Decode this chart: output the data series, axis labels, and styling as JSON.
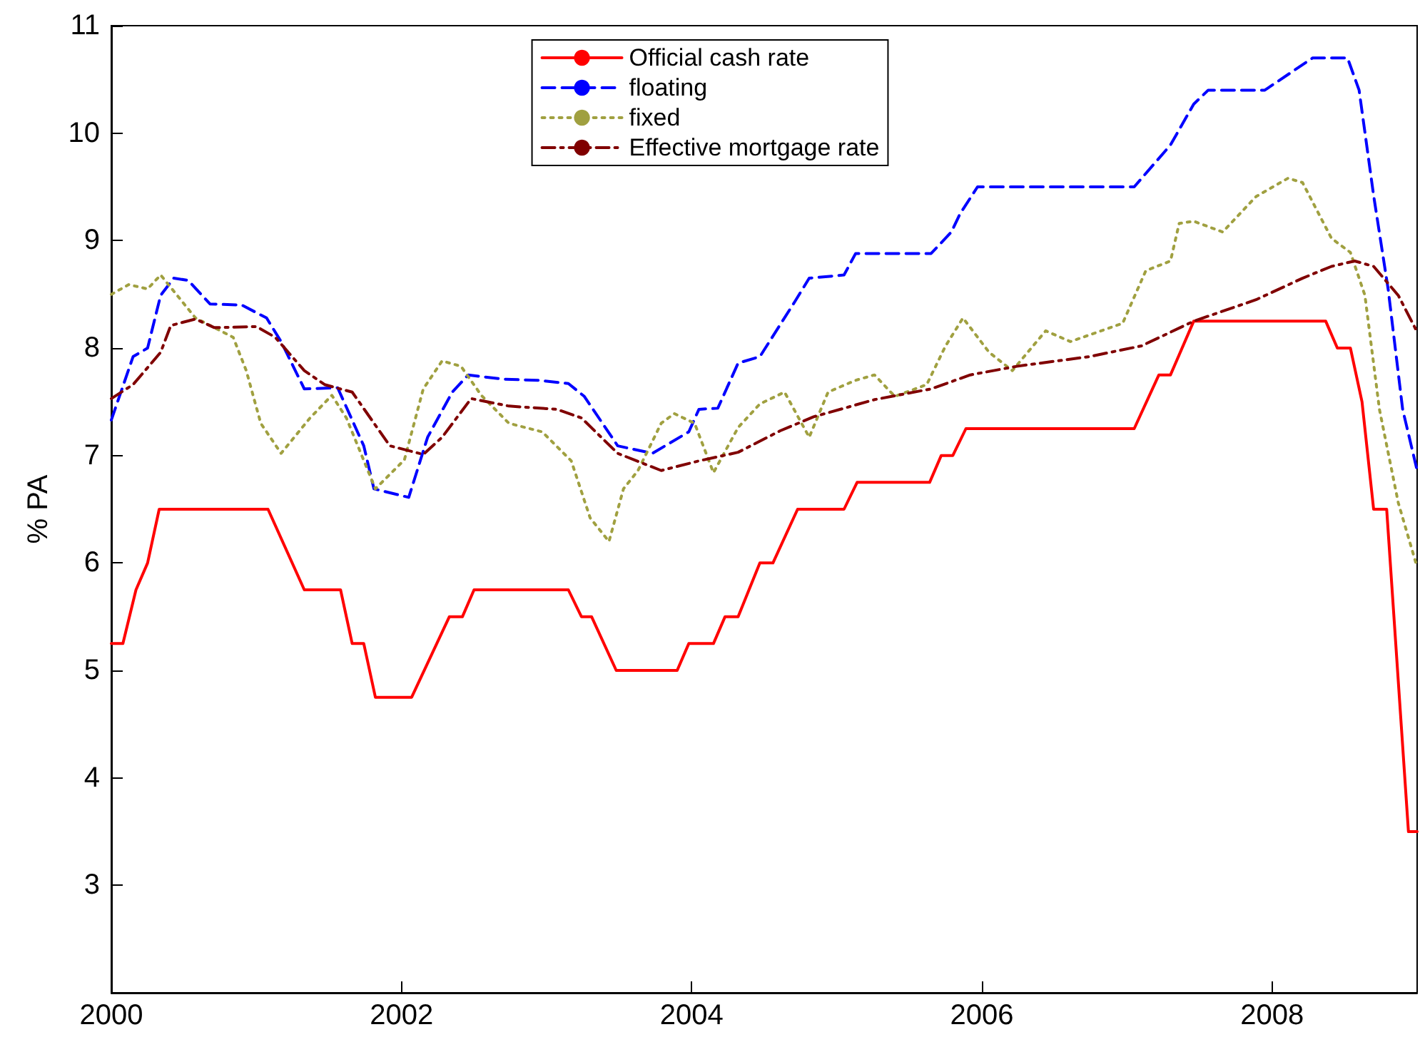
{
  "chart_data": {
    "type": "line",
    "ylabel": "% PA",
    "xlim": [
      2000,
      2009
    ],
    "xticks": [
      2000,
      2002,
      2004,
      2006,
      2008
    ],
    "ylim": [
      2,
      11
    ],
    "yticks": [
      3,
      4,
      5,
      6,
      7,
      8,
      9,
      10,
      11
    ],
    "grid": false,
    "legend": "top",
    "marker": "none",
    "series": [
      {
        "name": "Official cash rate",
        "color": "#ff0000",
        "line_style": "solid",
        "x": [
          2000,
          2000.08,
          2000.17,
          2000.25,
          2000.33,
          2001.08,
          2001.33,
          2001.58,
          2001.66,
          2001.74,
          2001.82,
          2002.07,
          2002.33,
          2002.42,
          2002.5,
          2003.15,
          2003.24,
          2003.31,
          2003.48,
          2003.9,
          2003.98,
          2004.15,
          2004.23,
          2004.32,
          2004.47,
          2004.56,
          2004.73,
          2005.05,
          2005.14,
          2005.64,
          2005.72,
          2005.8,
          2005.89,
          2007.05,
          2007.22,
          2007.3,
          2007.46,
          2008.37,
          2008.45,
          2008.54,
          2008.62,
          2008.7,
          2008.79,
          2008.94,
          2009
        ],
        "values": [
          5.25,
          5.25,
          5.75,
          6,
          6.5,
          6.5,
          5.75,
          5.75,
          5.25,
          5.25,
          4.75,
          4.75,
          5.5,
          5.5,
          5.75,
          5.75,
          5.5,
          5.5,
          5,
          5,
          5.25,
          5.25,
          5.5,
          5.5,
          6,
          6,
          6.5,
          6.5,
          6.75,
          6.75,
          7,
          7,
          7.25,
          7.25,
          7.75,
          7.75,
          8.25,
          8.25,
          8,
          8,
          7.5,
          6.5,
          6.5,
          3.5,
          3.5
        ]
      },
      {
        "name": "floating",
        "color": "#0000ff",
        "line_style": "dashed",
        "x": [
          2000,
          2000.15,
          2000.25,
          2000.34,
          2000.43,
          2000.53,
          2000.68,
          2000.9,
          2001.07,
          2001.17,
          2001.33,
          2001.56,
          2001.74,
          2001.81,
          2002.05,
          2002.18,
          2002.35,
          2002.46,
          2002.7,
          2002.94,
          2003.15,
          2003.26,
          2003.49,
          2003.73,
          2003.98,
          2004.05,
          2004.18,
          2004.32,
          2004.47,
          2004.71,
          2004.81,
          2005.05,
          2005.13,
          2005.65,
          2005.79,
          2005.85,
          2005.97,
          2007.05,
          2007.3,
          2007.46,
          2007.56,
          2007.95,
          2008.28,
          2008.52,
          2008.6,
          2008.7,
          2008.8,
          2008.9,
          2009
        ],
        "values": [
          7.33,
          7.92,
          8,
          8.49,
          8.65,
          8.63,
          8.41,
          8.4,
          8.28,
          8.06,
          7.62,
          7.63,
          7.09,
          6.69,
          6.61,
          7.17,
          7.59,
          7.75,
          7.71,
          7.7,
          7.67,
          7.55,
          7.09,
          7.02,
          7.22,
          7.43,
          7.44,
          7.86,
          7.92,
          8.43,
          8.65,
          8.68,
          8.88,
          8.88,
          9.08,
          9.25,
          9.5,
          9.5,
          9.89,
          10.27,
          10.4,
          10.4,
          10.7,
          10.7,
          10.4,
          9.42,
          8.55,
          7.43,
          6.86
        ]
      },
      {
        "name": "fixed",
        "color": "#a0a040",
        "line_style": "dotted",
        "x": [
          2000,
          2000.12,
          2000.25,
          2000.34,
          2000.58,
          2000.84,
          2000.93,
          2001.03,
          2001.17,
          2001.37,
          2001.52,
          2001.62,
          2001.82,
          2002.02,
          2002.15,
          2002.28,
          2002.41,
          2002.55,
          2002.74,
          2002.97,
          2003.17,
          2003.3,
          2003.43,
          2003.53,
          2003.63,
          2003.79,
          2003.88,
          2004.02,
          2004.15,
          2004.32,
          2004.47,
          2004.64,
          2004.81,
          2004.94,
          2005.13,
          2005.26,
          2005.4,
          2005.62,
          2005.75,
          2005.87,
          2006.05,
          2006.21,
          2006.44,
          2006.61,
          2006.97,
          2007.13,
          2007.3,
          2007.36,
          2007.46,
          2007.66,
          2007.89,
          2008.11,
          2008.21,
          2008.41,
          2008.54,
          2008.64,
          2008.74,
          2008.87,
          2009
        ],
        "values": [
          8.5,
          8.59,
          8.55,
          8.68,
          8.28,
          8.1,
          7.79,
          7.3,
          7.02,
          7.35,
          7.56,
          7.35,
          6.69,
          6.96,
          7.62,
          7.88,
          7.83,
          7.56,
          7.3,
          7.22,
          6.95,
          6.42,
          6.2,
          6.69,
          6.86,
          7.3,
          7.39,
          7.3,
          6.84,
          7.26,
          7.48,
          7.59,
          7.17,
          7.59,
          7.7,
          7.75,
          7.55,
          7.66,
          8.02,
          8.28,
          7.96,
          7.79,
          8.16,
          8.06,
          8.23,
          8.72,
          8.81,
          9.16,
          9.18,
          9.08,
          9.41,
          9.58,
          9.54,
          9.02,
          8.89,
          8.49,
          7.43,
          6.56,
          5.96
        ]
      },
      {
        "name": "Effective mortgage rate",
        "color": "#800000",
        "line_style": "dashdot",
        "x": [
          2000,
          2000.15,
          2000.34,
          2000.41,
          2000.58,
          2000.71,
          2001,
          2001.13,
          2001.33,
          2001.47,
          2001.66,
          2001.92,
          2002.15,
          2002.28,
          2002.48,
          2002.74,
          2003.07,
          2003.24,
          2003.49,
          2003.79,
          2004.05,
          2004.32,
          2004.61,
          2004.84,
          2005.26,
          2005.65,
          2005.92,
          2006.24,
          2006.74,
          2007.1,
          2007.46,
          2007.89,
          2008.21,
          2008.41,
          2008.57,
          2008.7,
          2008.87,
          2009
        ],
        "values": [
          7.53,
          7.66,
          7.96,
          8.21,
          8.27,
          8.19,
          8.2,
          8.1,
          7.79,
          7.66,
          7.59,
          7.09,
          7.01,
          7.17,
          7.53,
          7.46,
          7.43,
          7.35,
          7.02,
          6.86,
          6.95,
          7.03,
          7.23,
          7.36,
          7.52,
          7.62,
          7.75,
          7.83,
          7.92,
          8.02,
          8.25,
          8.45,
          8.65,
          8.76,
          8.81,
          8.76,
          8.49,
          8.15
        ]
      }
    ]
  }
}
